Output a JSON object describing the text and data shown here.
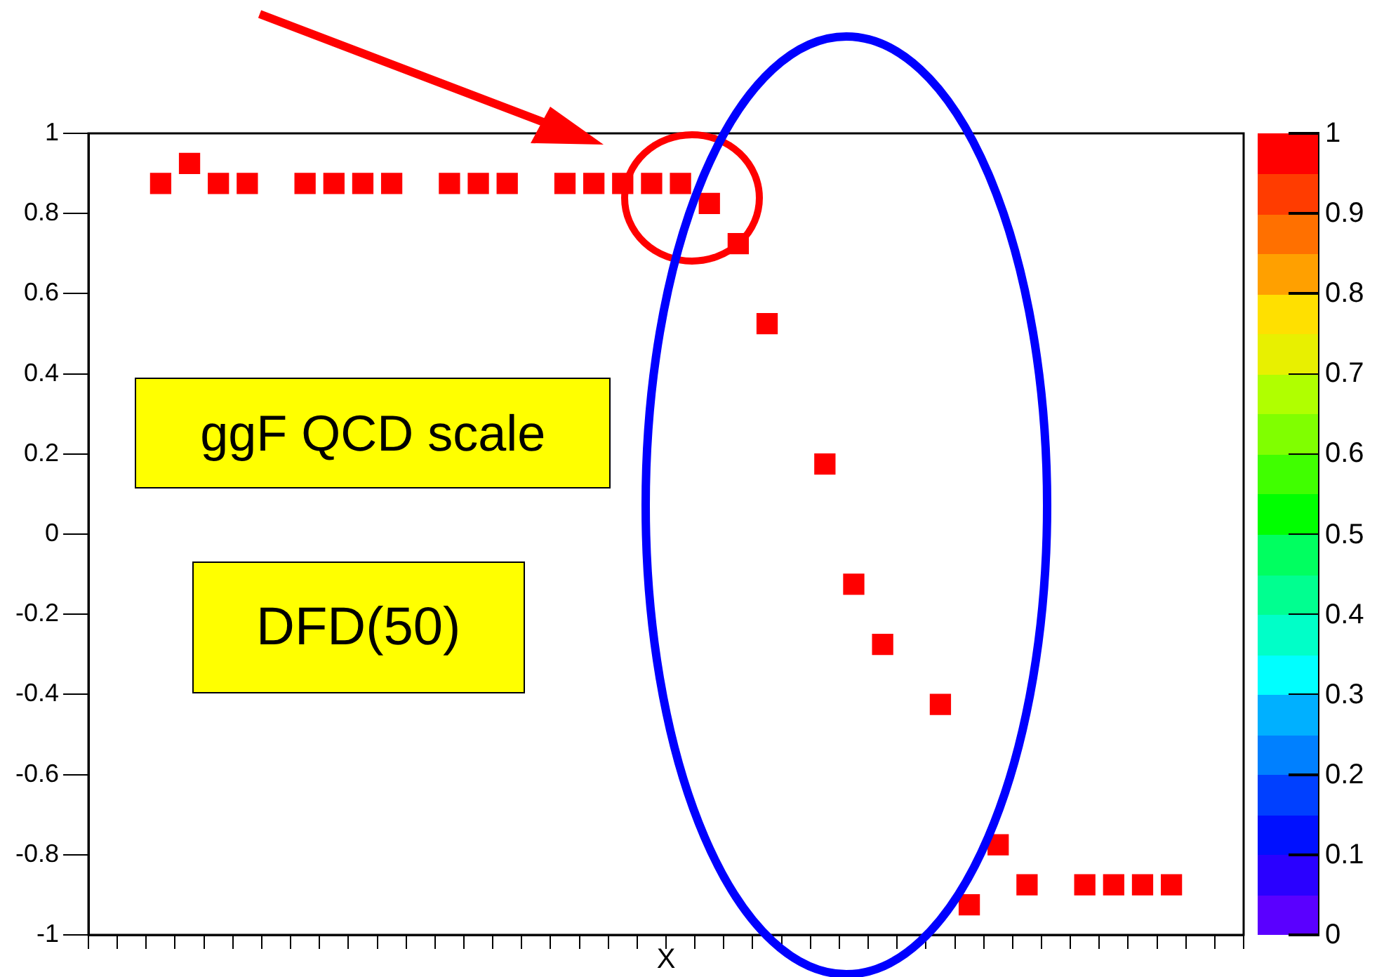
{
  "chart_data": {
    "type": "scatter",
    "xlabel": "X",
    "categories": [
      null,
      null,
      null,
      null,
      null,
      null,
      null,
      null,
      null,
      null,
      null,
      null,
      null,
      null,
      null,
      null,
      null,
      null,
      null,
      null,
      null,
      null,
      null,
      null,
      null,
      null,
      null,
      null,
      null,
      null,
      null,
      null,
      null,
      null,
      null,
      null,
      null,
      null,
      null,
      null
    ],
    "series": [
      {
        "color": "#ff0000",
        "values": [
          null,
          null,
          0.875,
          0.925,
          0.875,
          0.875,
          null,
          0.875,
          0.875,
          0.875,
          0.875,
          null,
          0.875,
          0.875,
          0.875,
          null,
          0.875,
          0.875,
          0.875,
          0.875,
          0.875,
          0.825,
          0.725,
          0.525,
          null,
          0.175,
          -0.125,
          -0.275,
          null,
          -0.425,
          -0.925,
          -0.775,
          -0.875,
          null,
          -0.875,
          -0.875,
          -0.875,
          -0.875,
          null,
          null
        ],
        "cvalues": [
          null,
          null,
          1,
          1,
          1,
          1,
          null,
          1,
          1,
          1,
          1,
          null,
          1,
          1,
          1,
          null,
          1,
          1,
          1,
          1,
          1,
          1,
          1,
          1,
          null,
          1,
          1,
          1,
          null,
          1,
          1,
          1,
          1,
          null,
          1,
          1,
          1,
          1,
          null,
          null
        ]
      }
    ],
    "ylim": [
      -1,
      1
    ],
    "yticks": [
      -1,
      -0.8,
      -0.6,
      -0.4,
      -0.2,
      0,
      0.2,
      0.4,
      0.6,
      0.8,
      1
    ],
    "clim": [
      0,
      1
    ],
    "cticks": [
      0,
      0.1,
      0.2,
      0.3,
      0.4,
      0.5,
      0.6,
      0.7,
      0.8,
      0.9,
      1
    ],
    "marker": "square",
    "grid": false,
    "legend": false,
    "tick_labels": "y",
    "annotations": [
      "ggF QCD scale",
      "DFD(50)"
    ]
  }
}
